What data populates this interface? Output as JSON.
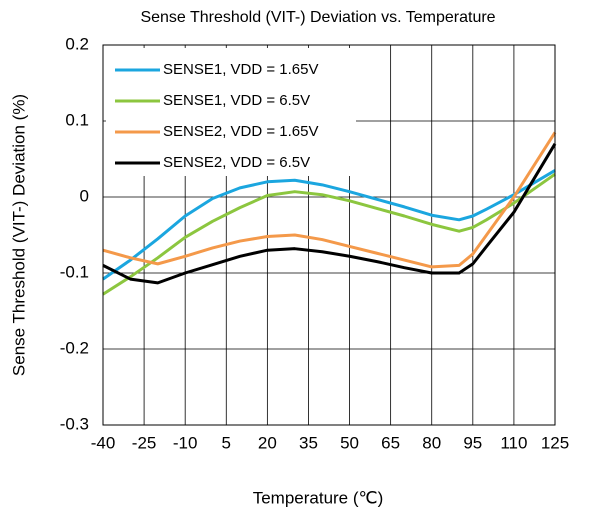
{
  "chart_data": {
    "type": "line",
    "title": "Sense Threshold (VIT-) Deviation vs. Temperature",
    "x_label": "Temperature (℃)",
    "y_label": "Sense Threshold (VIT-) Deviation (%)",
    "x": [
      -40,
      -30,
      -20,
      -10,
      0,
      10,
      20,
      30,
      40,
      50,
      60,
      70,
      80,
      90,
      95,
      100,
      110,
      125
    ],
    "series": [
      {
        "name": "SENSE1, VDD = 1.65V",
        "color": "#1ba6df",
        "values": [
          -0.108,
          -0.083,
          -0.055,
          -0.025,
          -0.002,
          0.012,
          0.02,
          0.022,
          0.016,
          0.007,
          -0.003,
          -0.013,
          -0.024,
          -0.03,
          -0.025,
          -0.016,
          0.003,
          0.035
        ]
      },
      {
        "name": "SENSE1, VDD = 6.5V",
        "color": "#8cc63f",
        "values": [
          -0.128,
          -0.105,
          -0.08,
          -0.053,
          -0.032,
          -0.014,
          0.002,
          0.007,
          0.003,
          -0.005,
          -0.015,
          -0.025,
          -0.036,
          -0.045,
          -0.04,
          -0.03,
          -0.008,
          0.03
        ]
      },
      {
        "name": "SENSE2, VDD = 1.65V",
        "color": "#f4994a",
        "values": [
          -0.07,
          -0.08,
          -0.088,
          -0.078,
          -0.067,
          -0.058,
          -0.052,
          -0.05,
          -0.056,
          -0.065,
          -0.074,
          -0.083,
          -0.092,
          -0.09,
          -0.075,
          -0.05,
          0,
          0.085
        ]
      },
      {
        "name": "SENSE2, VDD = 6.5V",
        "color": "#000000",
        "values": [
          -0.09,
          -0.108,
          -0.113,
          -0.1,
          -0.089,
          -0.078,
          -0.07,
          -0.068,
          -0.072,
          -0.078,
          -0.085,
          -0.093,
          -0.1,
          -0.1,
          -0.088,
          -0.065,
          -0.02,
          0.07
        ]
      }
    ],
    "xlim": [
      -40,
      125
    ],
    "xticks": [
      -40,
      -25,
      -10,
      5,
      20,
      35,
      50,
      65,
      80,
      95,
      110,
      125
    ],
    "ylim": [
      -0.3,
      0.2
    ],
    "yticks": [
      -0.3,
      -0.2,
      -0.1,
      0,
      0.1,
      0.2
    ],
    "grid": true,
    "legend": "upper left"
  }
}
